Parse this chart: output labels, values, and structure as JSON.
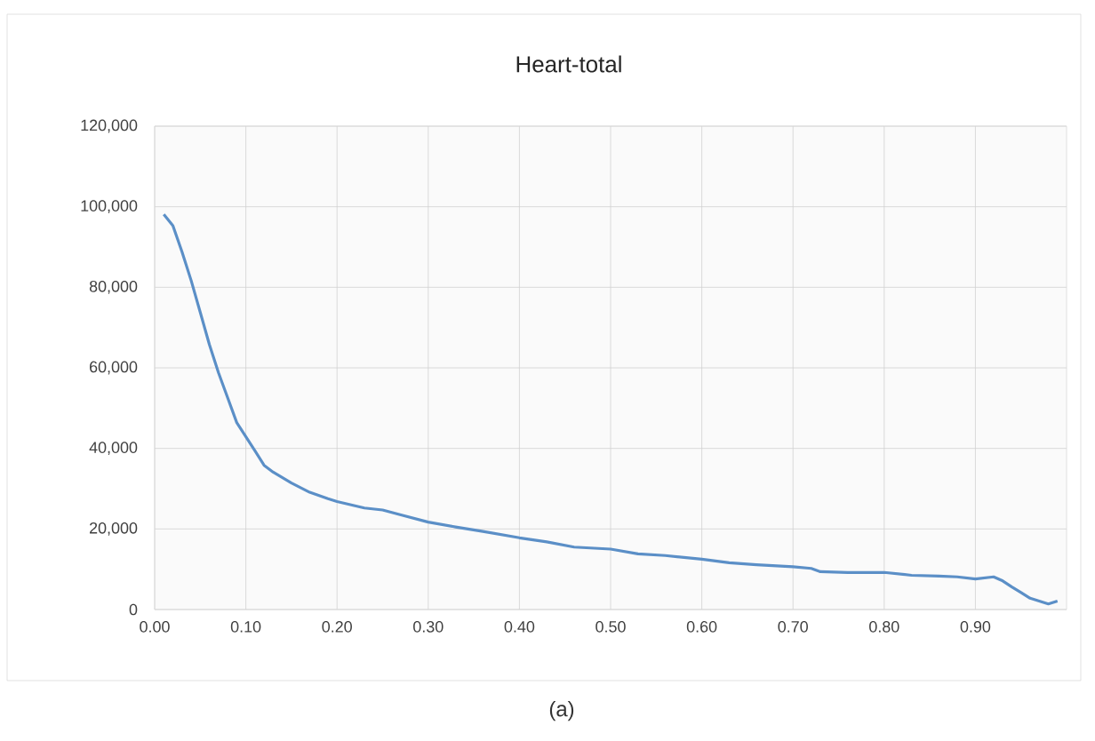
{
  "chart_data": {
    "type": "line",
    "title": "Heart-total",
    "x": [
      0.01,
      0.02,
      0.03,
      0.04,
      0.05,
      0.06,
      0.07,
      0.08,
      0.09,
      0.1,
      0.11,
      0.12,
      0.13,
      0.15,
      0.17,
      0.19,
      0.2,
      0.23,
      0.25,
      0.27,
      0.3,
      0.33,
      0.36,
      0.4,
      0.43,
      0.46,
      0.5,
      0.53,
      0.56,
      0.6,
      0.63,
      0.66,
      0.7,
      0.72,
      0.73,
      0.76,
      0.8,
      0.83,
      0.86,
      0.88,
      0.9,
      0.92,
      0.93,
      0.94,
      0.95,
      0.96,
      0.97,
      0.98,
      0.99
    ],
    "series": [
      {
        "color": "#5b8fc7",
        "values": [
          98100,
          95300,
          88800,
          81700,
          73800,
          65800,
          58800,
          52600,
          46400,
          42900,
          39400,
          35800,
          34100,
          31400,
          29100,
          27500,
          26800,
          25200,
          24700,
          23500,
          21700,
          20500,
          19400,
          17800,
          16800,
          15500,
          15000,
          13800,
          13400,
          12500,
          11600,
          11100,
          10600,
          10200,
          9400,
          9200,
          9200,
          8500,
          8300,
          8100,
          7600,
          8100,
          7100,
          5600,
          4200,
          2800,
          2100,
          1400,
          2100
        ]
      }
    ],
    "xlim": [
      0,
      1
    ],
    "xticks": [
      {
        "value": 0,
        "label": "0.00"
      },
      {
        "value": 0.1,
        "label": "0.10"
      },
      {
        "value": 0.2,
        "label": "0.20"
      },
      {
        "value": 0.3,
        "label": "0.30"
      },
      {
        "value": 0.4,
        "label": "0.40"
      },
      {
        "value": 0.5,
        "label": "0.50"
      },
      {
        "value": 0.6,
        "label": "0.60"
      },
      {
        "value": 0.7,
        "label": "0.70"
      },
      {
        "value": 0.8,
        "label": "0.80"
      },
      {
        "value": 0.9,
        "label": "0.90"
      }
    ],
    "ylim": [
      0,
      120000
    ],
    "yticks": [
      0,
      {
        "value": 20000,
        "label": "20,000"
      },
      {
        "value": 40000,
        "label": "40,000"
      },
      {
        "value": 60000,
        "label": "60,000"
      },
      {
        "value": 80000,
        "label": "80,000"
      },
      {
        "value": 100000,
        "label": "100,000"
      },
      {
        "value": 120000,
        "label": "120,000"
      }
    ],
    "grid": true,
    "marker": "none",
    "line_style": "solid",
    "annotations": [
      "(a)"
    ]
  }
}
